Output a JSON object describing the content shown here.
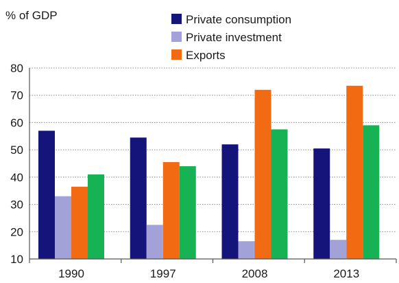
{
  "chart_data": {
    "type": "bar",
    "title": "",
    "ylabel": "% of GDP",
    "xlabel": "",
    "categories": [
      "1990",
      "1997",
      "2008",
      "2013"
    ],
    "ylim": [
      10,
      80
    ],
    "yticks": [
      10,
      20,
      30,
      40,
      50,
      60,
      70,
      80
    ],
    "grid": true,
    "legend_position": "top-right",
    "series": [
      {
        "name": "Private consumption",
        "color": "#14147a",
        "values": [
          57,
          54.5,
          52,
          50.5
        ]
      },
      {
        "name": "Private investment",
        "color": "#a2a2d8",
        "values": [
          33,
          22.5,
          16.5,
          17
        ]
      },
      {
        "name": "Exports",
        "color": "#f26a12",
        "values": [
          36.5,
          45.5,
          72,
          73.5
        ]
      },
      {
        "name": "",
        "color": "#16b254",
        "values": [
          41,
          44,
          57.5,
          59
        ]
      }
    ]
  }
}
